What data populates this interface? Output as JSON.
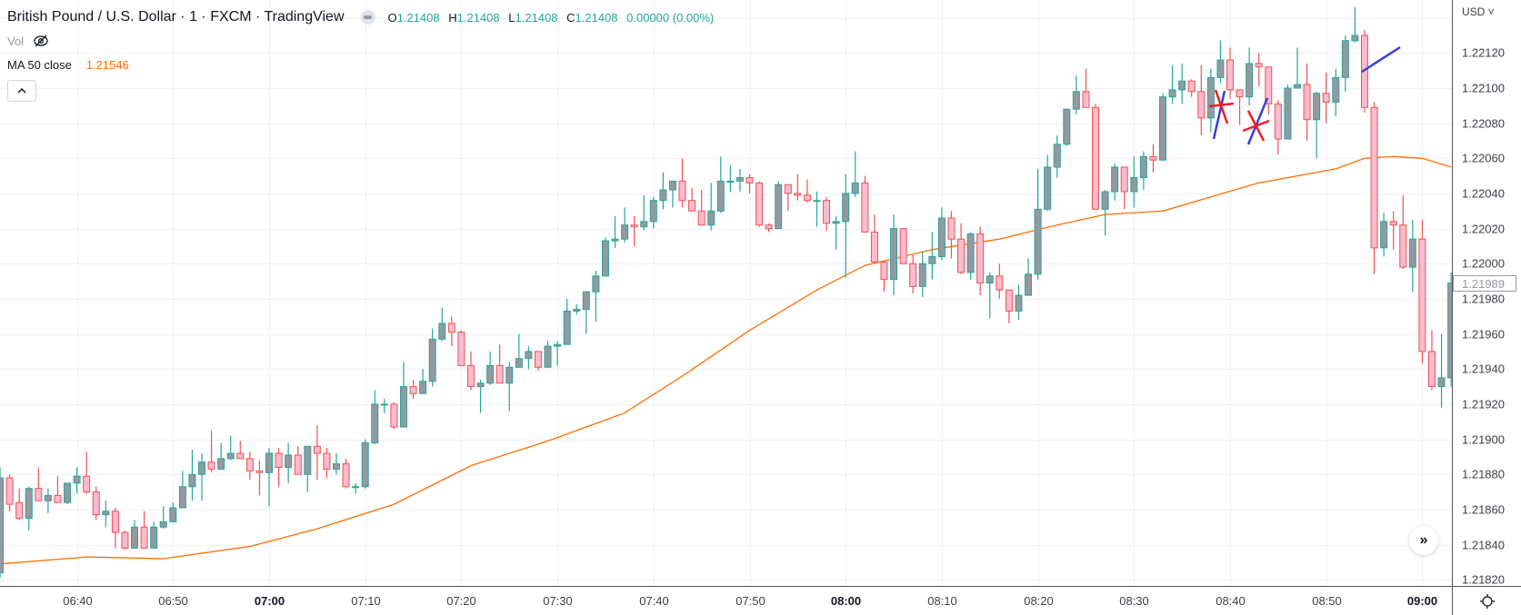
{
  "header": {
    "title": "British Pound / U.S. Dollar · 1 · FXCM · TradingView",
    "ohlc": [
      {
        "label": "O",
        "value": "1.21408"
      },
      {
        "label": "H",
        "value": "1.21408"
      },
      {
        "label": "L",
        "value": "1.21408"
      },
      {
        "label": "C",
        "value": "1.21408"
      }
    ],
    "change": "0.00000 (0.00%)",
    "vol_label": "Vol",
    "ma_label": "MA 50 close",
    "ma_value": "1.21546",
    "collapse_icon": "chevron-up-icon"
  },
  "price_axis": {
    "currency": "USD ˅",
    "current_price": "1.21989"
  },
  "colors": {
    "bull_body": "#9598a1",
    "bull_border": "#26a69a",
    "bear_body": "#f8bbd0",
    "bear_border": "#ef5350",
    "ma_line": "#ff6d00",
    "grid": "#eef1f6",
    "annotation_red": "#ee1c25",
    "annotation_blue": "#3c3cd6"
  },
  "scroll_button_label": "»",
  "chart_data": {
    "type": "candlestick",
    "symbol": "GBPUSD",
    "interval_min": 1,
    "start_time": "06:32",
    "ylim": [
      1.2182,
      1.2214
    ],
    "grid": true,
    "y_ticks": [
      "1.22120",
      "1.22100",
      "1.22080",
      "1.22060",
      "1.22040",
      "1.22020",
      "1.22000",
      "1.21980",
      "1.21960",
      "1.21940",
      "1.21920",
      "1.21900",
      "1.21880",
      "1.21860",
      "1.21840",
      "1.21820"
    ],
    "x_ticks": [
      "06:40",
      "06:50",
      "07:00",
      "07:10",
      "07:20",
      "07:30",
      "07:40",
      "07:50",
      "08:00",
      "08:10",
      "08:20",
      "08:30",
      "08:40",
      "08:50",
      "09:00"
    ],
    "ohlc": [
      [
        1.21824,
        1.21884,
        1.21821,
        1.21878
      ],
      [
        1.21878,
        1.2188,
        1.21859,
        1.21863
      ],
      [
        1.21864,
        1.21872,
        1.21854,
        1.21855
      ],
      [
        1.21855,
        1.21873,
        1.21848,
        1.21872
      ],
      [
        1.21872,
        1.21884,
        1.21865,
        1.21865
      ],
      [
        1.21865,
        1.21872,
        1.21858,
        1.21868
      ],
      [
        1.21868,
        1.21879,
        1.21864,
        1.21864
      ],
      [
        1.21864,
        1.21875,
        1.21863,
        1.21875
      ],
      [
        1.21875,
        1.21884,
        1.21869,
        1.21879
      ],
      [
        1.21879,
        1.21893,
        1.21869,
        1.2187
      ],
      [
        1.2187,
        1.21873,
        1.21854,
        1.21857
      ],
      [
        1.21857,
        1.21865,
        1.2185,
        1.21859
      ],
      [
        1.21859,
        1.21861,
        1.21838,
        1.21847
      ],
      [
        1.21847,
        1.21848,
        1.21837,
        1.21838
      ],
      [
        1.21838,
        1.21854,
        1.21838,
        1.2185
      ],
      [
        1.2185,
        1.21859,
        1.21838,
        1.21838
      ],
      [
        1.21838,
        1.21853,
        1.21838,
        1.2185
      ],
      [
        1.2185,
        1.21862,
        1.21849,
        1.21853
      ],
      [
        1.21853,
        1.21864,
        1.21853,
        1.21861
      ],
      [
        1.21861,
        1.21882,
        1.21861,
        1.21873
      ],
      [
        1.21873,
        1.21894,
        1.21865,
        1.2188
      ],
      [
        1.2188,
        1.21892,
        1.21865,
        1.21887
      ],
      [
        1.21887,
        1.21905,
        1.21881,
        1.21883
      ],
      [
        1.21883,
        1.21898,
        1.21883,
        1.21889
      ],
      [
        1.21889,
        1.21902,
        1.21888,
        1.21892
      ],
      [
        1.21892,
        1.21899,
        1.21889,
        1.21889
      ],
      [
        1.21889,
        1.21893,
        1.21877,
        1.21882
      ],
      [
        1.21882,
        1.21888,
        1.21868,
        1.21881
      ],
      [
        1.21881,
        1.21895,
        1.21862,
        1.21892
      ],
      [
        1.21892,
        1.21895,
        1.21873,
        1.21884
      ],
      [
        1.21884,
        1.21898,
        1.21875,
        1.21891
      ],
      [
        1.21891,
        1.21896,
        1.2188,
        1.2188
      ],
      [
        1.2188,
        1.21896,
        1.2187,
        1.21896
      ],
      [
        1.21896,
        1.21908,
        1.21877,
        1.21892
      ],
      [
        1.21892,
        1.21895,
        1.21878,
        1.21883
      ],
      [
        1.21883,
        1.21892,
        1.2188,
        1.21886
      ],
      [
        1.21886,
        1.21889,
        1.21872,
        1.21873
      ],
      [
        1.21873,
        1.21875,
        1.21869,
        1.21873
      ],
      [
        1.21873,
        1.219,
        1.21872,
        1.21898
      ],
      [
        1.21898,
        1.21928,
        1.21897,
        1.2192
      ],
      [
        1.2192,
        1.21923,
        1.21915,
        1.2192
      ],
      [
        1.2192,
        1.21921,
        1.21906,
        1.21907
      ],
      [
        1.21907,
        1.21944,
        1.21907,
        1.2193
      ],
      [
        1.2193,
        1.21934,
        1.21923,
        1.21926
      ],
      [
        1.21926,
        1.2194,
        1.21926,
        1.21933
      ],
      [
        1.21933,
        1.21963,
        1.2193,
        1.21957
      ],
      [
        1.21957,
        1.21975,
        1.21956,
        1.21966
      ],
      [
        1.21966,
        1.2197,
        1.21953,
        1.21961
      ],
      [
        1.21961,
        1.21962,
        1.21942,
        1.21942
      ],
      [
        1.21942,
        1.2195,
        1.21928,
        1.2193
      ],
      [
        1.2193,
        1.21934,
        1.21915,
        1.21932
      ],
      [
        1.21932,
        1.2195,
        1.21931,
        1.21942
      ],
      [
        1.21942,
        1.21954,
        1.21932,
        1.21932
      ],
      [
        1.21932,
        1.21944,
        1.21916,
        1.21941
      ],
      [
        1.21941,
        1.2196,
        1.21941,
        1.21946
      ],
      [
        1.21946,
        1.21953,
        1.2194,
        1.2195
      ],
      [
        1.2195,
        1.2195,
        1.21939,
        1.21941
      ],
      [
        1.21941,
        1.21956,
        1.21941,
        1.21953
      ],
      [
        1.21953,
        1.21956,
        1.21942,
        1.21954
      ],
      [
        1.21954,
        1.2198,
        1.21954,
        1.21973
      ],
      [
        1.21973,
        1.21977,
        1.21971,
        1.21974
      ],
      [
        1.21974,
        1.21984,
        1.2196,
        1.21984
      ],
      [
        1.21984,
        1.21996,
        1.21967,
        1.21993
      ],
      [
        1.21993,
        1.22015,
        1.21993,
        1.22013
      ],
      [
        1.22013,
        1.22027,
        1.22009,
        1.22014
      ],
      [
        1.22014,
        1.22032,
        1.22012,
        1.22022
      ],
      [
        1.22022,
        1.22027,
        1.2201,
        1.22021
      ],
      [
        1.22021,
        1.22039,
        1.22019,
        1.22024
      ],
      [
        1.22024,
        1.22038,
        1.2202,
        1.22036
      ],
      [
        1.22036,
        1.22052,
        1.22031,
        1.22042
      ],
      [
        1.22042,
        1.22047,
        1.22032,
        1.22047
      ],
      [
        1.22047,
        1.2206,
        1.22032,
        1.22036
      ],
      [
        1.22036,
        1.22043,
        1.2203,
        1.2203
      ],
      [
        1.2203,
        1.22042,
        1.22022,
        1.22022
      ],
      [
        1.22022,
        1.22046,
        1.22019,
        1.2203
      ],
      [
        1.2203,
        1.22061,
        1.22029,
        1.22047
      ],
      [
        1.22047,
        1.22056,
        1.22041,
        1.22047
      ],
      [
        1.22047,
        1.22054,
        1.22041,
        1.22049
      ],
      [
        1.22049,
        1.22051,
        1.2204,
        1.22046
      ],
      [
        1.22046,
        1.22047,
        1.22021,
        1.22022
      ],
      [
        1.22022,
        1.22023,
        1.22018,
        1.2202
      ],
      [
        1.2202,
        1.22047,
        1.2202,
        1.22045
      ],
      [
        1.22045,
        1.22045,
        1.2203,
        1.2204
      ],
      [
        1.2204,
        1.22051,
        1.22036,
        1.22039
      ],
      [
        1.22039,
        1.22048,
        1.22035,
        1.22036
      ],
      [
        1.22036,
        1.22041,
        1.22021,
        1.22036
      ],
      [
        1.22036,
        1.22038,
        1.22019,
        1.22023
      ],
      [
        1.22023,
        1.22027,
        1.22008,
        1.22024
      ],
      [
        1.22024,
        1.22051,
        1.21992,
        1.2204
      ],
      [
        1.2204,
        1.22064,
        1.22038,
        1.22046
      ],
      [
        1.22046,
        1.2205,
        1.22018,
        1.22018
      ],
      [
        1.22018,
        1.22028,
        1.22,
        1.22001
      ],
      [
        1.22001,
        1.22001,
        1.21984,
        1.21991
      ],
      [
        1.21991,
        1.22028,
        1.21982,
        1.2202
      ],
      [
        1.2202,
        1.2202,
        1.22,
        1.22
      ],
      [
        1.22,
        1.22005,
        1.21983,
        1.21987
      ],
      [
        1.21987,
        1.22007,
        1.21981,
        1.22
      ],
      [
        1.22,
        1.22018,
        1.21991,
        1.22004
      ],
      [
        1.22004,
        1.22032,
        1.22002,
        1.22026
      ],
      [
        1.22026,
        1.2203,
        1.22003,
        1.22014
      ],
      [
        1.22014,
        1.22023,
        1.21994,
        1.21995
      ],
      [
        1.21995,
        1.22018,
        1.21991,
        1.22017
      ],
      [
        1.22017,
        1.22021,
        1.21982,
        1.21989
      ],
      [
        1.21989,
        1.21995,
        1.21969,
        1.21993
      ],
      [
        1.21993,
        1.22,
        1.2198,
        1.21985
      ],
      [
        1.21985,
        1.21985,
        1.21966,
        1.21973
      ],
      [
        1.21973,
        1.21988,
        1.21968,
        1.21982
      ],
      [
        1.21982,
        1.22003,
        1.21982,
        1.21994
      ],
      [
        1.21994,
        1.22054,
        1.21991,
        1.22031
      ],
      [
        1.22031,
        1.22062,
        1.2203,
        1.22055
      ],
      [
        1.22055,
        1.22073,
        1.22049,
        1.22068
      ],
      [
        1.22068,
        1.22088,
        1.22067,
        1.22088
      ],
      [
        1.22088,
        1.22107,
        1.22085,
        1.22098
      ],
      [
        1.22098,
        1.22111,
        1.22089,
        1.22089
      ],
      [
        1.22089,
        1.22091,
        1.22031,
        1.22031
      ],
      [
        1.22031,
        1.22042,
        1.22016,
        1.22041
      ],
      [
        1.22041,
        1.22057,
        1.22036,
        1.22055
      ],
      [
        1.22055,
        1.22055,
        1.22031,
        1.22041
      ],
      [
        1.22041,
        1.22061,
        1.22032,
        1.22049
      ],
      [
        1.22049,
        1.22064,
        1.22042,
        1.22061
      ],
      [
        1.22061,
        1.22068,
        1.22052,
        1.22059
      ],
      [
        1.22059,
        1.22097,
        1.22059,
        1.22095
      ],
      [
        1.22095,
        1.22113,
        1.22091,
        1.22099
      ],
      [
        1.22099,
        1.22114,
        1.22091,
        1.22104
      ],
      [
        1.22104,
        1.22105,
        1.22095,
        1.22098
      ],
      [
        1.22098,
        1.22113,
        1.22073,
        1.22083
      ],
      [
        1.22083,
        1.22111,
        1.22075,
        1.22106
      ],
      [
        1.22106,
        1.22127,
        1.22103,
        1.22116
      ],
      [
        1.22116,
        1.22123,
        1.22094,
        1.22099
      ],
      [
        1.22099,
        1.22099,
        1.22079,
        1.22095
      ],
      [
        1.22095,
        1.22123,
        1.2209,
        1.22114
      ],
      [
        1.22114,
        1.2212,
        1.22101,
        1.22112
      ],
      [
        1.22112,
        1.22112,
        1.22085,
        1.22091
      ],
      [
        1.22091,
        1.22093,
        1.22062,
        1.22071
      ],
      [
        1.22071,
        1.22102,
        1.22071,
        1.221
      ],
      [
        1.221,
        1.22123,
        1.221,
        1.22102
      ],
      [
        1.22102,
        1.22114,
        1.2207,
        1.22082
      ],
      [
        1.22082,
        1.22098,
        1.2206,
        1.22097
      ],
      [
        1.22097,
        1.22109,
        1.2208,
        1.22092
      ],
      [
        1.22092,
        1.22111,
        1.22084,
        1.22106
      ],
      [
        1.22106,
        1.2213,
        1.22098,
        1.22127
      ],
      [
        1.22127,
        1.22146,
        1.22126,
        1.2213
      ],
      [
        1.2213,
        1.22133,
        1.22086,
        1.22089
      ],
      [
        1.22089,
        1.22092,
        1.21994,
        1.22009
      ],
      [
        1.22009,
        1.22029,
        1.22004,
        1.22024
      ],
      [
        1.22024,
        1.2203,
        1.22008,
        1.22022
      ],
      [
        1.22022,
        1.22039,
        1.21997,
        1.21998
      ],
      [
        1.21998,
        1.22025,
        1.21984,
        1.22014
      ],
      [
        1.22014,
        1.22025,
        1.21943,
        1.2195
      ],
      [
        1.2195,
        1.21962,
        1.21928,
        1.2193
      ],
      [
        1.2193,
        1.2196,
        1.21918,
        1.21935
      ],
      [
        1.21935,
        1.21995,
        1.2193,
        1.21989
      ]
    ],
    "ma50": [
      [
        "06:32",
        1.21829
      ],
      [
        "06:41",
        1.21833
      ],
      [
        "06:49",
        1.21832
      ],
      [
        "06:58",
        1.21839
      ],
      [
        "07:05",
        1.21849
      ],
      [
        "07:13",
        1.21863
      ],
      [
        "07:21",
        1.21885
      ],
      [
        "07:29",
        1.21899
      ],
      [
        "07:37",
        1.21915
      ],
      [
        "07:43",
        1.21936
      ],
      [
        "07:50",
        1.21962
      ],
      [
        "07:57",
        1.21985
      ],
      [
        "08:02",
        1.21999
      ],
      [
        "08:09",
        1.22008
      ],
      [
        "08:16",
        1.22014
      ],
      [
        "08:22",
        1.22022
      ],
      [
        "08:27",
        1.22028
      ],
      [
        "08:33",
        1.2203
      ],
      [
        "08:38",
        1.22038
      ],
      [
        "08:43",
        1.22046
      ],
      [
        "08:51",
        1.22054
      ],
      [
        "08:54",
        1.2206
      ],
      [
        "08:57",
        1.22061
      ],
      [
        "09:00",
        1.2206
      ],
      [
        "09:03",
        1.22055
      ]
    ]
  }
}
